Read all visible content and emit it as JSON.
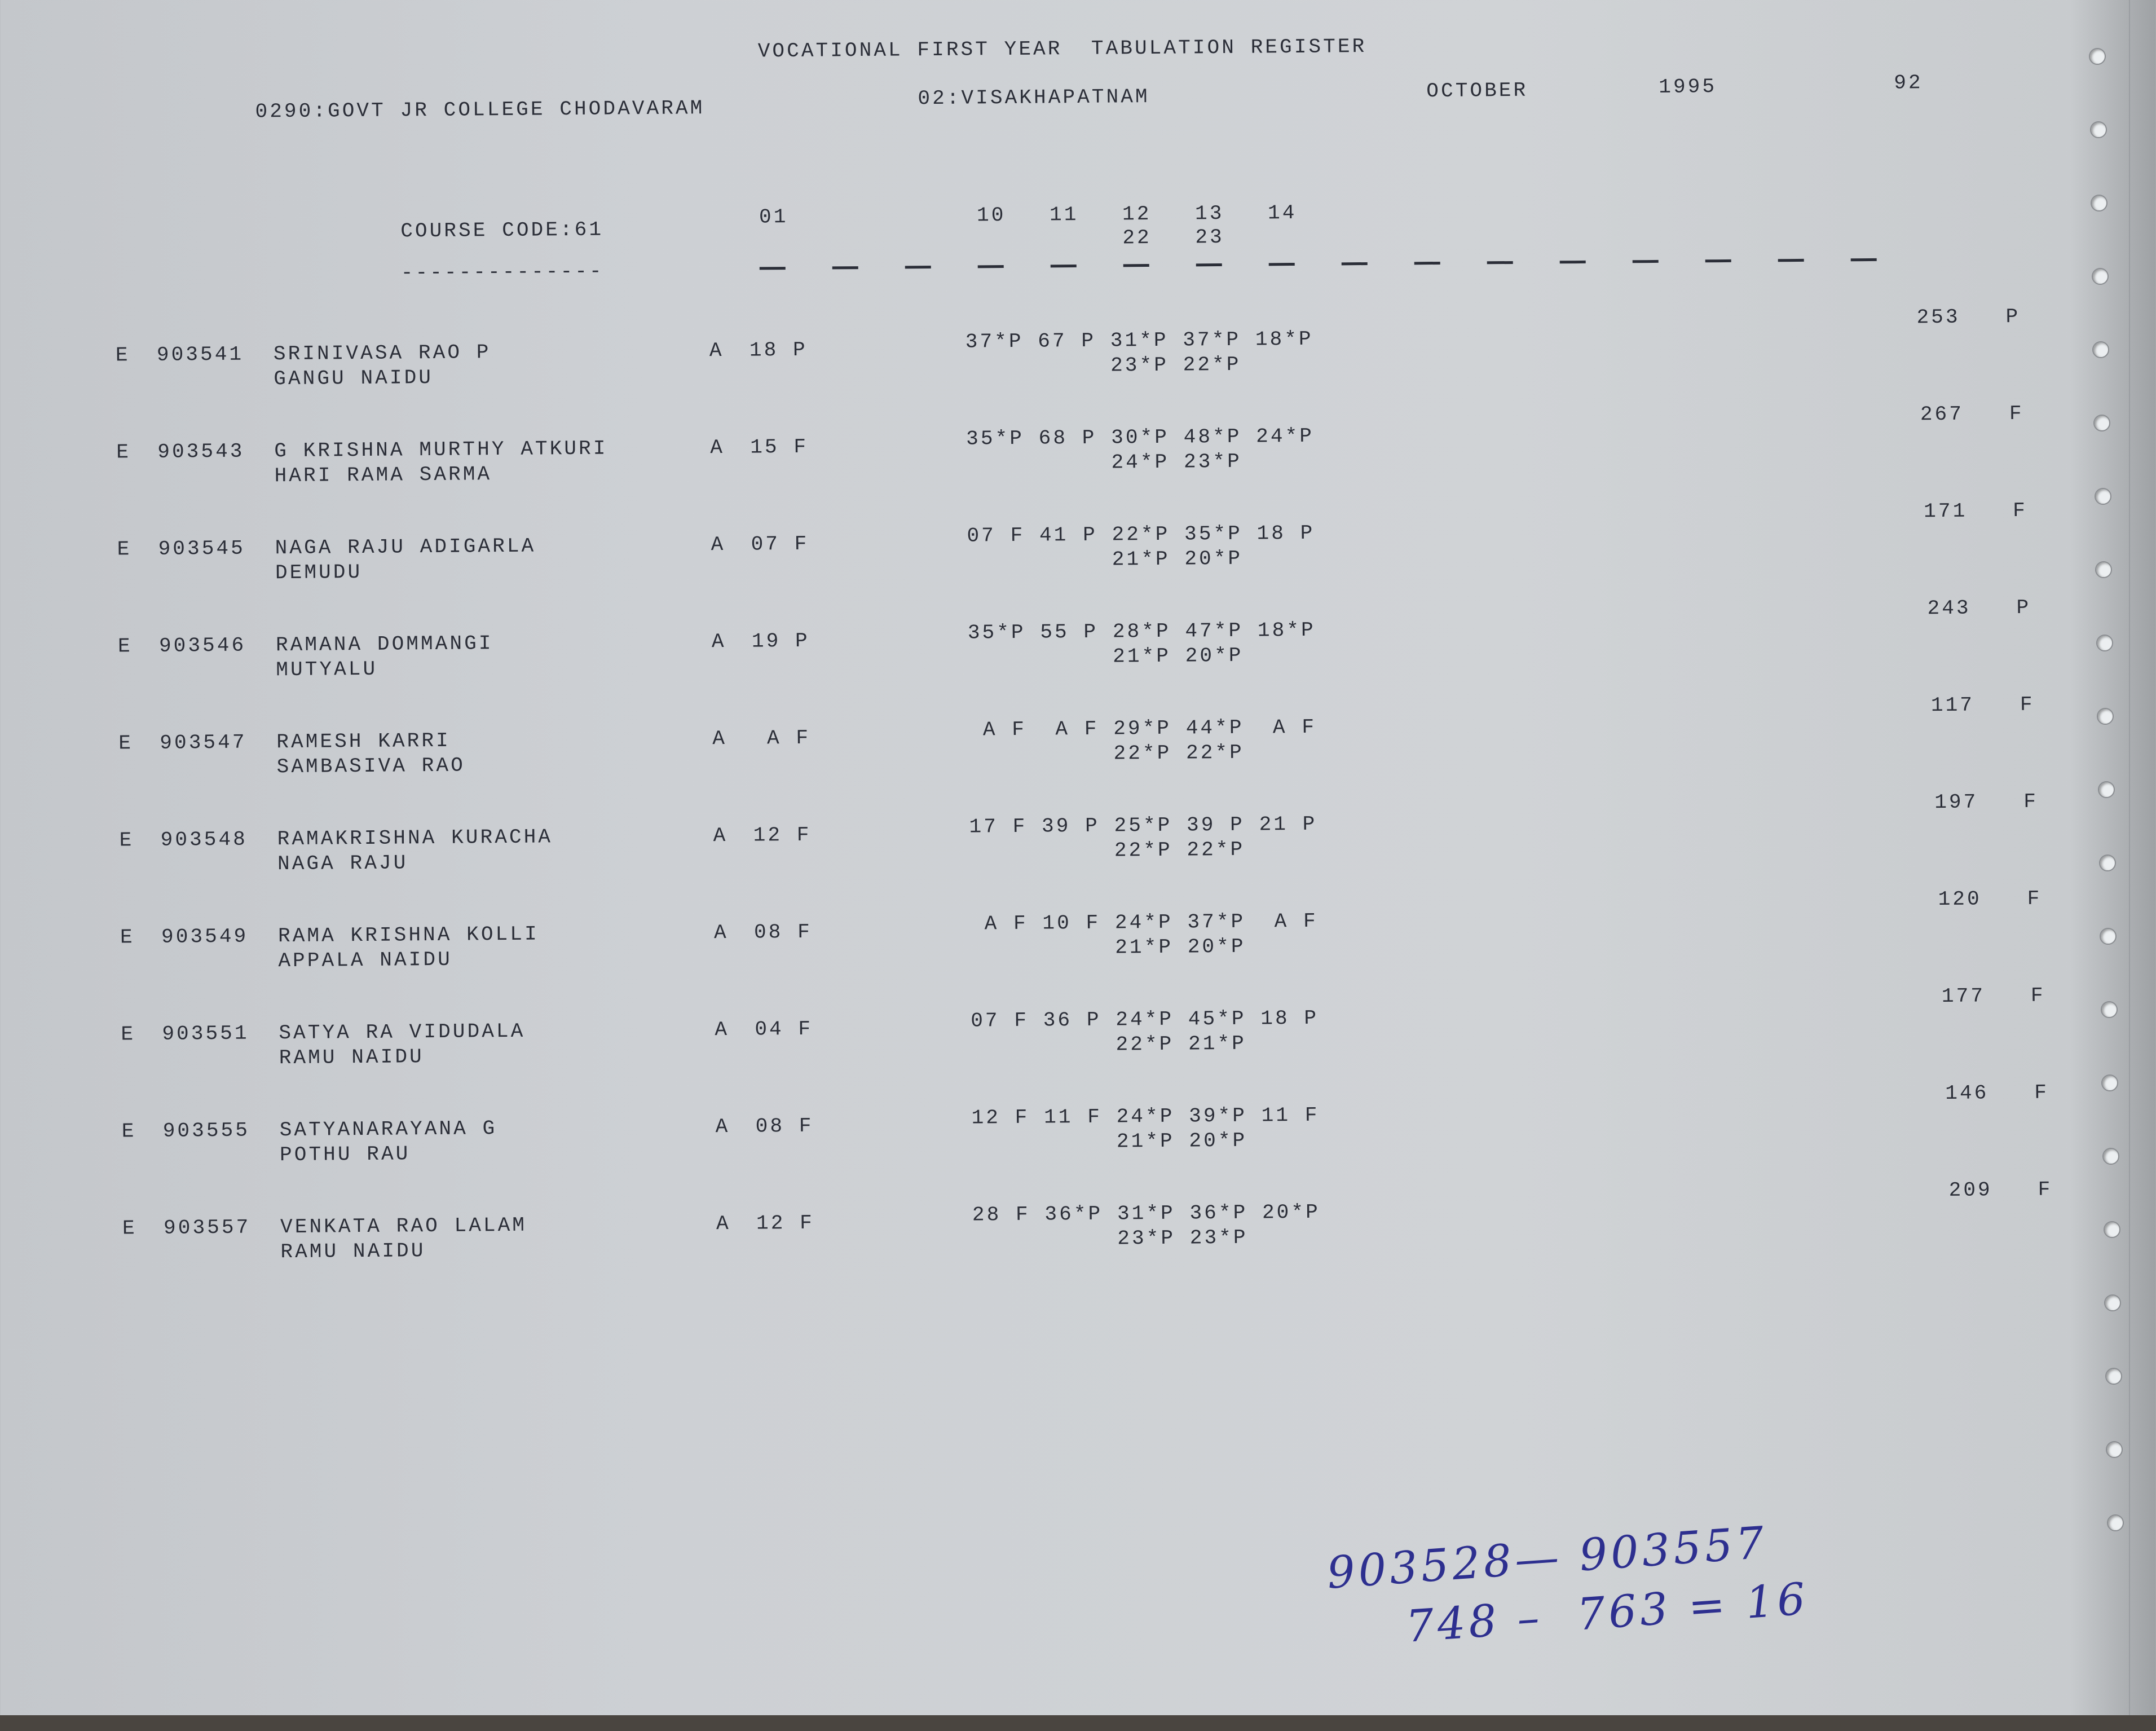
{
  "header": {
    "title": "VOCATIONAL FIRST YEAR  TABULATION REGISTER",
    "college": "0290:GOVT JR COLLEGE CHODAVARAM",
    "district": "02:VISAKHAPATNAM",
    "month": "OCTOBER",
    "year": "1995",
    "page": "92"
  },
  "columns": {
    "course_code": "COURSE CODE:61",
    "course_underline": "--------------",
    "headings": [
      "01",
      "10",
      "11",
      "12",
      "13",
      "14"
    ],
    "sub_headings": [
      "22",
      "23"
    ],
    "dash_count": 16
  },
  "students": [
    {
      "type": "E",
      "roll": "903541",
      "name": "SRINIVASA RAO P",
      "parent": "GANGU NAIDU",
      "medium": "A",
      "part1": "18 P",
      "line1": "37*P 67 P 31*P 37*P 18*P",
      "line2": "23*P 22*P",
      "total": "253",
      "result": "P"
    },
    {
      "type": "E",
      "roll": "903543",
      "name": "G KRISHNA MURTHY ATKURI",
      "parent": "HARI RAMA SARMA",
      "medium": "A",
      "part1": "15 F",
      "line1": "35*P 68 P 30*P 48*P 24*P",
      "line2": "24*P 23*P",
      "total": "267",
      "result": "F"
    },
    {
      "type": "E",
      "roll": "903545",
      "name": "NAGA RAJU ADIGARLA",
      "parent": "DEMUDU",
      "medium": "A",
      "part1": "07 F",
      "line1": "07 F 41 P 22*P 35*P 18 P",
      "line2": "21*P 20*P",
      "total": "171",
      "result": "F"
    },
    {
      "type": "E",
      "roll": "903546",
      "name": "RAMANA DOMMANGI",
      "parent": "MUTYALU",
      "medium": "A",
      "part1": "19 P",
      "line1": "35*P 55 P 28*P 47*P 18*P",
      "line2": "21*P 20*P",
      "total": "243",
      "result": "P"
    },
    {
      "type": "E",
      "roll": "903547",
      "name": "RAMESH KARRI",
      "parent": "SAMBASIVA RAO",
      "medium": "A",
      "part1": " A F",
      "line1": " A F  A F 29*P 44*P  A F",
      "line2": "22*P 22*P",
      "total": "117",
      "result": "F"
    },
    {
      "type": "E",
      "roll": "903548",
      "name": "RAMAKRISHNA KURACHA",
      "parent": "NAGA RAJU",
      "medium": "A",
      "part1": "12 F",
      "line1": "17 F 39 P 25*P 39 P 21 P",
      "line2": "22*P 22*P",
      "total": "197",
      "result": "F"
    },
    {
      "type": "E",
      "roll": "903549",
      "name": "RAMA KRISHNA KOLLI",
      "parent": "APPALA NAIDU",
      "medium": "A",
      "part1": "08 F",
      "line1": " A F 10 F 24*P 37*P  A F",
      "line2": "21*P 20*P",
      "total": "120",
      "result": "F"
    },
    {
      "type": "E",
      "roll": "903551",
      "name": "SATYA RA VIDUDALA",
      "parent": "RAMU NAIDU",
      "medium": "A",
      "part1": "04 F",
      "line1": "07 F 36 P 24*P 45*P 18 P",
      "line2": "22*P 21*P",
      "total": "177",
      "result": "F"
    },
    {
      "type": "E",
      "roll": "903555",
      "name": "SATYANARAYANA G",
      "parent": "POTHU RAU",
      "medium": "A",
      "part1": "08 F",
      "line1": "12 F 11 F 24*P 39*P 11 F",
      "line2": "21*P 20*P",
      "total": "146",
      "result": "F"
    },
    {
      "type": "E",
      "roll": "903557",
      "name": "VENKATA RAO LALAM",
      "parent": "RAMU NAIDU",
      "medium": "A",
      "part1": "12 F",
      "line1": "28 F 36*P 31*P 36*P 20*P",
      "line2": "23*P 23*P",
      "total": "209",
      "result": "F"
    }
  ],
  "annotation": {
    "line1": "903528— 903557",
    "line2": "748 –  763 = 16"
  },
  "colors": {
    "ink": "#2b2e38",
    "paper": "#cdd0d4",
    "handwriting": "#2d2f8f"
  }
}
